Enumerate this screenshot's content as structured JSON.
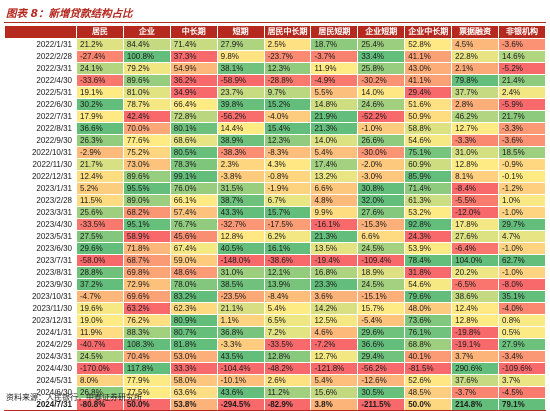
{
  "title": "图表 8：新增贷款结构占比",
  "source": "资料来源：人民银行，中泰证券研究所",
  "columns": [
    "",
    "居民",
    "企业",
    "中长期",
    "短期",
    "居民中长期",
    "居民短期",
    "企业短期",
    "企业中长期",
    "票据融资",
    "非银机构"
  ],
  "colors": {
    "header_bg": "#b5291f",
    "high": "#63be7b",
    "mid": "#ffeb84",
    "low": "#f8696b"
  },
  "rows": [
    [
      "2022/1/31",
      "21.2%",
      "84.4%",
      "71.4%",
      "27.9%",
      "2.5%",
      "18.7%",
      "25.4%",
      "52.8%",
      "4.5%",
      "-3.6%"
    ],
    [
      "2022/2/28",
      "-27.4%",
      "100.8%",
      "37.3%",
      "9.8%",
      "-23.7%",
      "-3.7%",
      "33.4%",
      "41.1%",
      "22.8%",
      "14.6%"
    ],
    [
      "2022/3/31",
      "24.1%",
      "79.2%",
      "54.9%",
      "38.1%",
      "12.3%",
      "11.9%",
      "25.8%",
      "43.0%",
      "2.1%",
      "-5.2%"
    ],
    [
      "2022/4/30",
      "-33.6%",
      "89.6%",
      "36.2%",
      "-58.9%",
      "-28.8%",
      "-4.9%",
      "-30.2%",
      "41.1%",
      "79.8%",
      "21.4%"
    ],
    [
      "2022/5/31",
      "19.1%",
      "81.0%",
      "34.9%",
      "23.7%",
      "9.7%",
      "5.5%",
      "14.0%",
      "29.4%",
      "37.7%",
      "2.4%"
    ],
    [
      "2022/6/30",
      "30.2%",
      "78.7%",
      "66.4%",
      "39.8%",
      "15.2%",
      "14.8%",
      "24.6%",
      "51.6%",
      "2.8%",
      "-5.9%"
    ],
    [
      "2022/7/31",
      "17.9%",
      "42.4%",
      "72.8%",
      "-56.2%",
      "-4.0%",
      "21.9%",
      "-52.2%",
      "50.9%",
      "46.2%",
      "21.7%"
    ],
    [
      "2022/8/31",
      "36.6%",
      "70.0%",
      "80.1%",
      "14.4%",
      "15.4%",
      "21.3%",
      "-1.0%",
      "58.8%",
      "12.7%",
      "-3.3%"
    ],
    [
      "2022/9/30",
      "26.3%",
      "77.6%",
      "68.6%",
      "38.9%",
      "12.3%",
      "14.0%",
      "26.6%",
      "54.6%",
      "-3.3%",
      "-3.6%"
    ],
    [
      "2022/10/31",
      "-2.9%",
      "75.2%",
      "80.5%",
      "-38.3%",
      "-8.3%",
      "5.4%",
      "-30.0%",
      "75.1%",
      "31.0%",
      "18.5%"
    ],
    [
      "2022/11/30",
      "21.7%",
      "73.0%",
      "78.3%",
      "2.3%",
      "4.3%",
      "17.4%",
      "-2.0%",
      "60.9%",
      "12.8%",
      "-0.9%"
    ],
    [
      "2022/12/31",
      "12.4%",
      "89.6%",
      "99.1%",
      "-3.8%",
      "-0.8%",
      "13.2%",
      "-3.0%",
      "85.9%",
      "8.1%",
      "-0.1%"
    ],
    [
      "2023/1/31",
      "5.2%",
      "95.5%",
      "76.0%",
      "31.5%",
      "-1.9%",
      "6.6%",
      "30.8%",
      "71.4%",
      "-8.4%",
      "-1.2%"
    ],
    [
      "2023/2/28",
      "11.5%",
      "89.0%",
      "66.1%",
      "38.7%",
      "6.7%",
      "4.8%",
      "32.0%",
      "61.3%",
      "-5.5%",
      "1.0%"
    ],
    [
      "2023/3/31",
      "25.6%",
      "68.2%",
      "57.4%",
      "43.3%",
      "15.7%",
      "9.9%",
      "27.6%",
      "53.2%",
      "-12.0%",
      "-1.0%"
    ],
    [
      "2023/4/30",
      "-33.5%",
      "95.1%",
      "76.7%",
      "-32.7%",
      "-17.5%",
      "-16.1%",
      "-15.3%",
      "92.8%",
      "17.8%",
      "29.7%"
    ],
    [
      "2023/5/31",
      "27.5%",
      "58.9%",
      "45.6%",
      "12.8%",
      "6.2%",
      "21.3%",
      "6.6%",
      "24.3%",
      "27.6%",
      "4.7%"
    ],
    [
      "2023/6/30",
      "29.6%",
      "71.8%",
      "67.4%",
      "40.5%",
      "16.1%",
      "13.5%",
      "24.5%",
      "53.9%",
      "-6.4%",
      "-1.0%"
    ],
    [
      "2023/7/31",
      "-58.0%",
      "68.7%",
      "59.0%",
      "-148.0%",
      "-38.6%",
      "-19.4%",
      "-109.4%",
      "78.4%",
      "104.0%",
      "62.7%"
    ],
    [
      "2023/8/31",
      "28.8%",
      "69.8%",
      "48.6%",
      "31.0%",
      "12.1%",
      "16.8%",
      "18.9%",
      "31.8%",
      "20.2%",
      "-1.0%"
    ],
    [
      "2023/9/30",
      "37.2%",
      "72.9%",
      "78.0%",
      "38.5%",
      "13.9%",
      "23.3%",
      "24.5%",
      "54.6%",
      "-6.5%",
      "-8.0%"
    ],
    [
      "2023/10/31",
      "-4.7%",
      "69.6%",
      "83.2%",
      "-23.5%",
      "-8.4%",
      "3.6%",
      "-15.1%",
      "79.6%",
      "38.6%",
      "35.1%"
    ],
    [
      "2023/11/30",
      "19.6%",
      "63.2%",
      "62.3%",
      "21.1%",
      "5.4%",
      "14.2%",
      "15.7%",
      "48.0%",
      "12.4%",
      "-4.0%"
    ],
    [
      "2023/12/31",
      "19.0%",
      "76.2%",
      "80.9%",
      "1.1%",
      "6.5%",
      "12.5%",
      "-5.4%",
      "73.6%",
      "12.8%",
      "0.8%"
    ],
    [
      "2024/1/31",
      "11.9%",
      "88.3%",
      "80.7%",
      "36.8%",
      "7.2%",
      "4.6%",
      "29.6%",
      "76.1%",
      "-19.8%",
      "0.5%"
    ],
    [
      "2024/2/29",
      "-40.7%",
      "108.3%",
      "81.8%",
      "-3.3%",
      "-33.5%",
      "-7.2%",
      "36.6%",
      "68.8%",
      "-19.1%",
      "27.9%"
    ],
    [
      "2024/3/31",
      "24.5%",
      "70.4%",
      "53.0%",
      "43.5%",
      "12.8%",
      "12.7%",
      "29.4%",
      "40.1%",
      "3.7%",
      "-3.4%"
    ],
    [
      "2024/4/30",
      "-170.0%",
      "117.8%",
      "33.3%",
      "-104.4%",
      "-48.2%",
      "-121.8%",
      "-56.2%",
      "-81.5%",
      "290.6%",
      "-109.6%"
    ],
    [
      "2024/5/31",
      "8.0%",
      "77.9%",
      "58.0%",
      "-10.1%",
      "2.6%",
      "5.4%",
      "-12.6%",
      "52.6%",
      "37.6%",
      "3.7%"
    ],
    [
      "2024/6/30",
      "26.8%",
      "77.5%",
      "63.6%",
      "43.6%",
      "11.2%",
      "15.6%",
      "30.5%",
      "48.5%",
      "-3.7%",
      "-4.5%"
    ],
    [
      "2024/7/31",
      "-80.8%",
      "50.0%",
      "53.8%",
      "-294.5%",
      "-82.9%",
      "3.8%",
      "-211.5%",
      "50.0%",
      "214.8%",
      "79.1%"
    ]
  ]
}
